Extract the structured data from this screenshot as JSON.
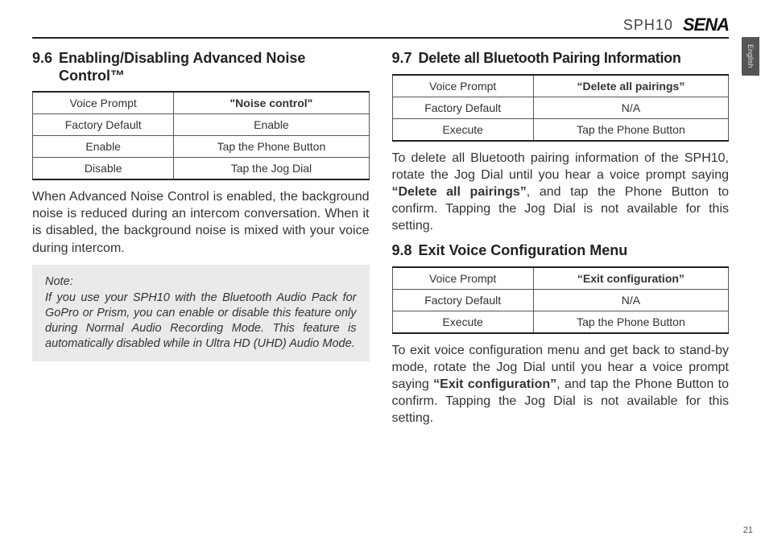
{
  "header": {
    "product": "SPH10",
    "brand": "SENA",
    "lang_tab": "English"
  },
  "left": {
    "section_num": "9.6",
    "section_title": "Enabling/Disabling Advanced Noise Control™",
    "table": {
      "rows": [
        [
          "Voice Prompt",
          "\"Noise control\""
        ],
        [
          "Factory Default",
          "Enable"
        ],
        [
          "Enable",
          "Tap the Phone Button"
        ],
        [
          "Disable",
          "Tap the Jog Dial"
        ]
      ],
      "bold_cells": [
        [
          0,
          1
        ]
      ]
    },
    "paragraph": "When Advanced Noise Control is enabled, the background noise is reduced during an intercom conversation. When it is disabled, the background noise is mixed with your voice during intercom.",
    "note_label": "Note:",
    "note_body": "If you use your SPH10 with the Bluetooth Audio Pack for GoPro or Prism, you can enable or disable this feature only during Normal Audio Recording Mode. This feature is automatically disabled while in Ultra HD (UHD) Audio Mode."
  },
  "right": {
    "s97": {
      "num": "9.7",
      "title": "Delete all Bluetooth Pairing Information",
      "table": {
        "rows": [
          [
            "Voice Prompt",
            "“Delete all pairings”"
          ],
          [
            "Factory Default",
            "N/A"
          ],
          [
            "Execute",
            "Tap the Phone Button"
          ]
        ],
        "bold_cells": [
          [
            0,
            1
          ]
        ]
      },
      "para_parts": [
        "To delete all Bluetooth pairing information of the SPH10, rotate the Jog Dial until you hear a voice prompt saying ",
        "“Delete all pairings”",
        ", and tap the Phone Button to confirm. Tapping the Jog Dial is not available for this setting."
      ]
    },
    "s98": {
      "num": "9.8",
      "title": "Exit Voice Configuration Menu",
      "table": {
        "rows": [
          [
            "Voice Prompt",
            "“Exit configuration”"
          ],
          [
            "Factory Default",
            "N/A"
          ],
          [
            "Execute",
            "Tap the Phone Button"
          ]
        ],
        "bold_cells": [
          [
            0,
            1
          ]
        ]
      },
      "para_parts": [
        "To exit voice configuration menu and get back to stand-by mode, rotate the Jog Dial until you hear a voice prompt saying ",
        "“Exit configuration”",
        ", and tap the Phone Button to confirm. Tapping the Jog Dial is not available for this setting."
      ]
    }
  },
  "page_number": "21"
}
